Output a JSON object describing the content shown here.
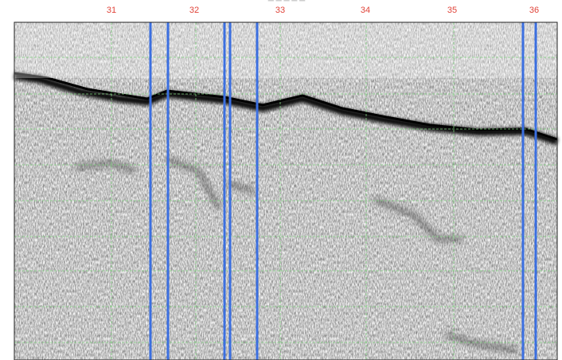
{
  "section_markers": [
    "31",
    "32",
    "33",
    "34",
    "35",
    "36"
  ]
}
